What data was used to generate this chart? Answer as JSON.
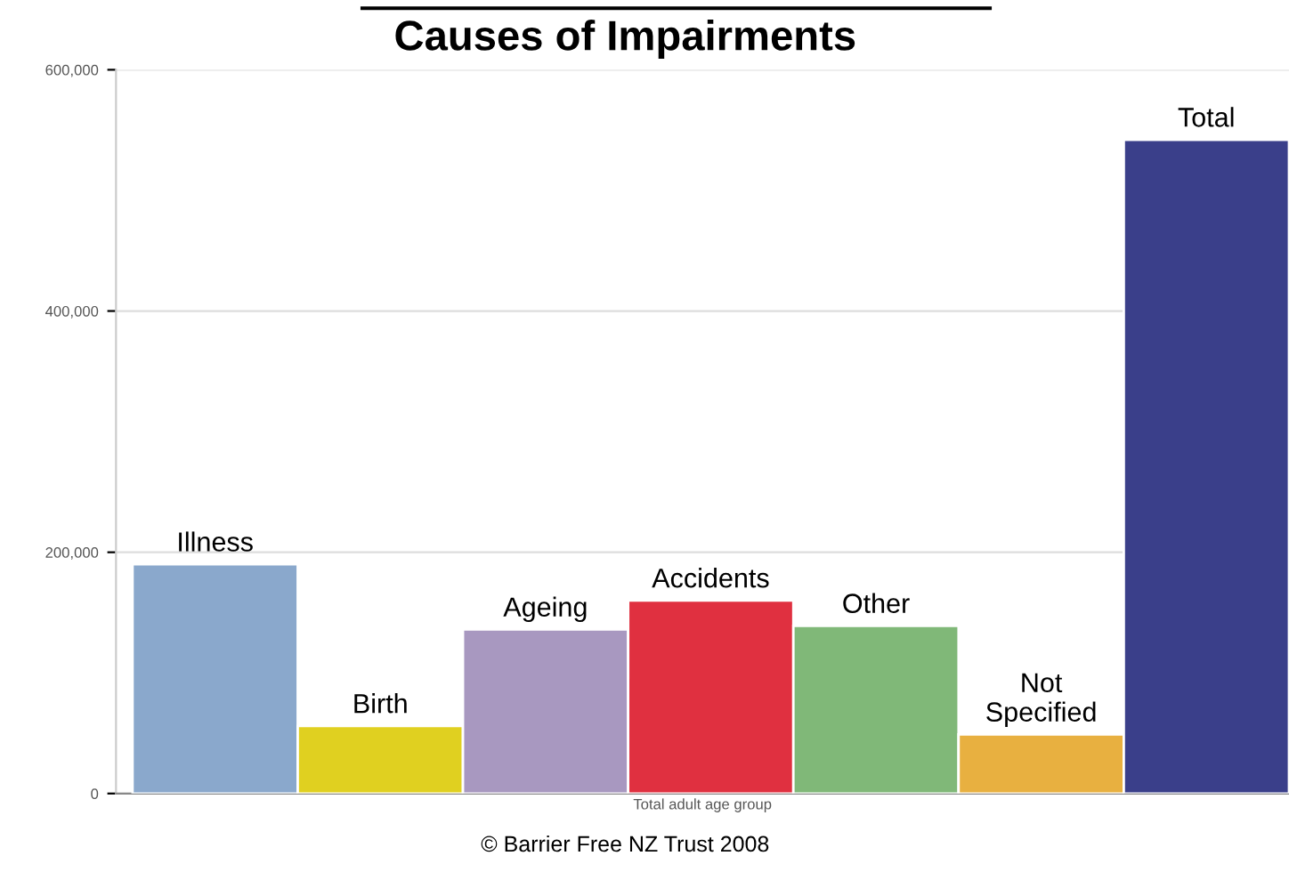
{
  "chart_data": {
    "type": "bar",
    "title": "Causes of Impairments",
    "xlabel": "Total adult age group",
    "categories": [
      "Illness",
      "Birth",
      "Ageing",
      "Accidents",
      "Other",
      "Not\nSpecified",
      "Total"
    ],
    "values": [
      190000,
      56000,
      136000,
      160000,
      139000,
      49000,
      542000
    ],
    "colors": [
      "#8aa8cc",
      "#e0d020",
      "#a898c0",
      "#e03040",
      "#80b878",
      "#e8b040",
      "#3a3f8a"
    ],
    "ylim": [
      0,
      600000
    ],
    "yticks": [
      {
        "value": 0,
        "label": "0"
      },
      {
        "value": 200000,
        "label": "200,000"
      },
      {
        "value": 400000,
        "label": "400,000"
      },
      {
        "value": 600000,
        "label": "600,000"
      }
    ],
    "grid": "y",
    "annotations": [
      "© Barrier Free NZ Trust 2008"
    ]
  }
}
